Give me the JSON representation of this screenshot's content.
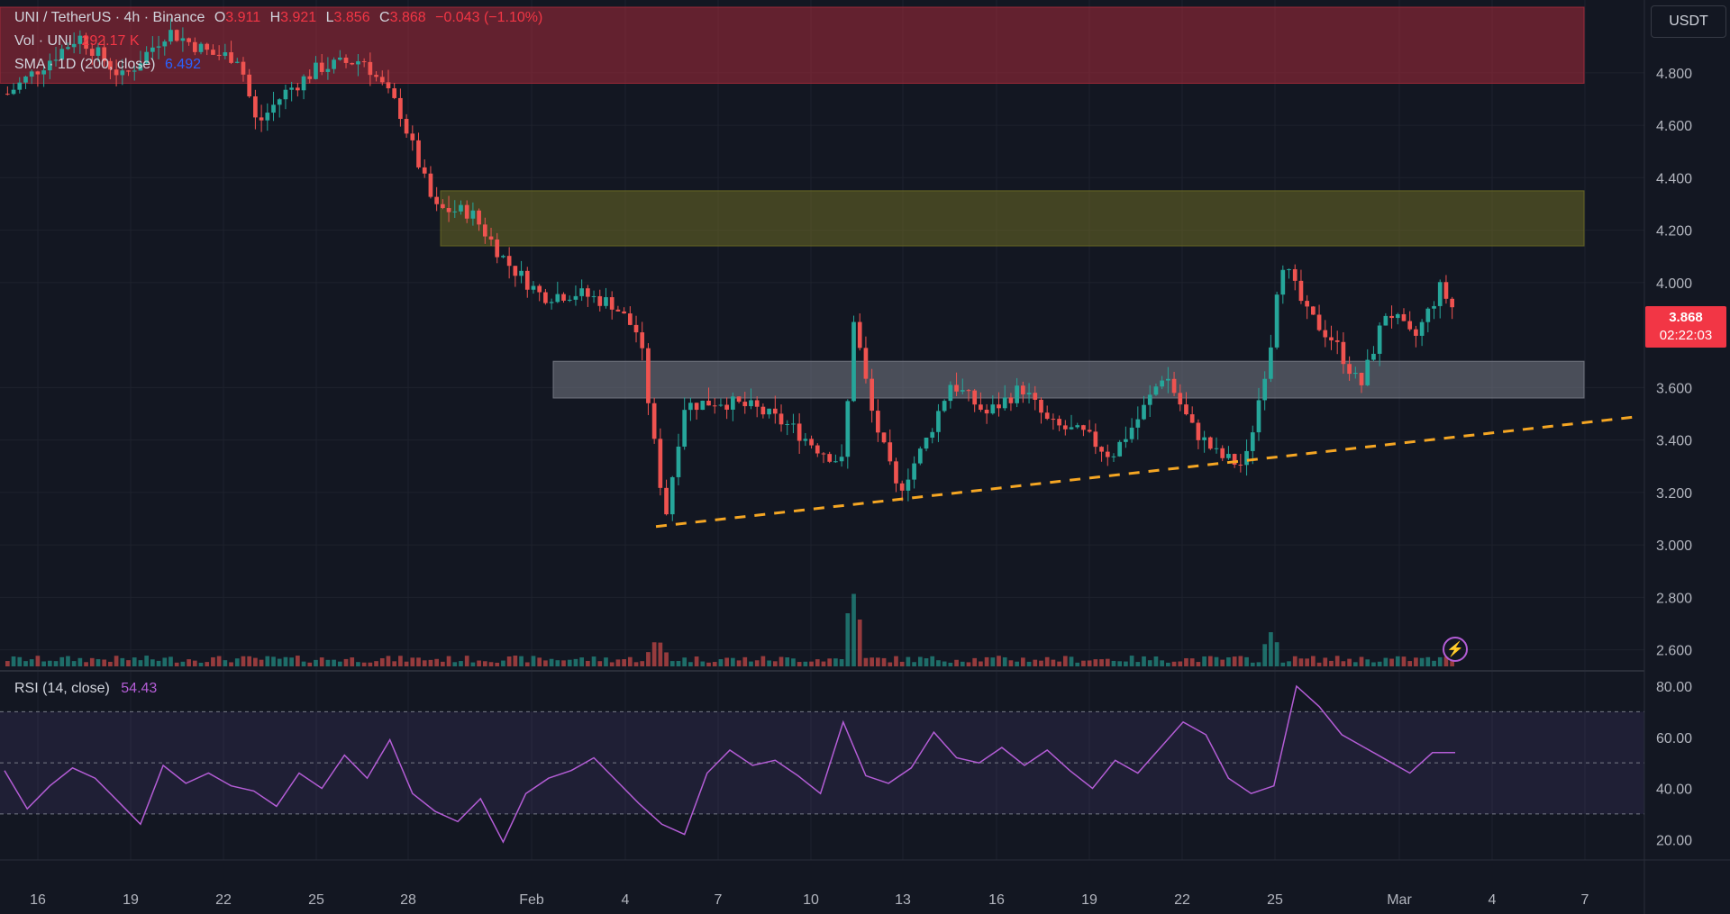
{
  "header": {
    "symbol": "UNI / TetherUS · 4h · Binance",
    "o_label": "O",
    "o": "3.911",
    "h_label": "H",
    "h": "3.921",
    "l_label": "L",
    "l": "3.856",
    "c_label": "C",
    "c": "3.868",
    "change": "−0.043 (−1.10%)",
    "vol_label": "Vol · UNI",
    "vol": "292.17 K",
    "sma_label": "SMA · 1D (200, close)",
    "sma": "6.492",
    "rsi_label": "RSI (14, close)",
    "rsi": "54.43"
  },
  "currency_button": "USDT",
  "last_price": {
    "value": "3.868",
    "countdown": "02:22:03"
  },
  "colors": {
    "up": "#26a69a",
    "down": "#ef5350",
    "rsi": "#b45dd6",
    "trendline": "#f5a623",
    "price_tag": "#f23645",
    "sma": "#2962ff"
  },
  "icons": {
    "alert": "lightning-bolt-icon"
  },
  "chart_data": {
    "type": "candlestick",
    "timeframe": "4h",
    "x_ticks": [
      "16",
      "19",
      "22",
      "25",
      "28",
      "Feb",
      "4",
      "7",
      "10",
      "13",
      "16",
      "19",
      "22",
      "25",
      "Mar",
      "4",
      "7"
    ],
    "price_ticks": [
      "4.800",
      "4.600",
      "4.400",
      "4.200",
      "4.000",
      "3.600",
      "3.400",
      "3.200",
      "3.000",
      "2.800",
      "2.600"
    ],
    "price_range": [
      2.53,
      5.05
    ],
    "zones": [
      {
        "low": 4.76,
        "high": 5.05,
        "color": "#a52a3a"
      },
      {
        "low": 4.14,
        "high": 4.35,
        "color": "#6b6a24"
      },
      {
        "low": 3.56,
        "high": 3.7,
        "color": "#787b86"
      }
    ],
    "trendline": {
      "start_price": 3.07,
      "end_price": 3.49,
      "style": "dashed"
    },
    "price_path": [
      [
        0,
        4.72
      ],
      [
        8,
        4.94
      ],
      [
        13,
        4.78
      ],
      [
        18,
        4.96
      ],
      [
        23,
        4.87
      ],
      [
        26,
        4.86
      ],
      [
        28,
        4.6
      ],
      [
        31,
        4.72
      ],
      [
        35,
        4.82
      ],
      [
        40,
        4.85
      ],
      [
        44,
        4.66
      ],
      [
        48,
        4.28
      ],
      [
        52,
        4.27
      ],
      [
        56,
        4.08
      ],
      [
        60,
        3.95
      ],
      [
        64,
        3.96
      ],
      [
        68,
        3.92
      ],
      [
        71,
        3.8
      ],
      [
        73,
        3.3
      ],
      [
        74,
        3.12
      ],
      [
        76,
        3.53
      ],
      [
        80,
        3.55
      ],
      [
        84,
        3.52
      ],
      [
        88,
        3.45
      ],
      [
        91,
        3.37
      ],
      [
        94,
        3.31
      ],
      [
        95,
        3.88
      ],
      [
        97,
        3.52
      ],
      [
        100,
        3.2
      ],
      [
        103,
        3.38
      ],
      [
        106,
        3.62
      ],
      [
        110,
        3.5
      ],
      [
        114,
        3.6
      ],
      [
        117,
        3.46
      ],
      [
        121,
        3.42
      ],
      [
        124,
        3.34
      ],
      [
        127,
        3.48
      ],
      [
        130,
        3.66
      ],
      [
        133,
        3.45
      ],
      [
        136,
        3.34
      ],
      [
        139,
        3.3
      ],
      [
        142,
        3.78
      ],
      [
        143,
        4.1
      ],
      [
        146,
        3.88
      ],
      [
        149,
        3.78
      ],
      [
        152,
        3.6
      ],
      [
        155,
        3.9
      ],
      [
        158,
        3.78
      ],
      [
        161,
        3.98
      ],
      [
        163,
        3.868
      ]
    ],
    "volume_spikes": [
      [
        73,
        3.2
      ],
      [
        95,
        8.4
      ],
      [
        142,
        3.9
      ]
    ],
    "rsi": {
      "ticks": [
        "80.00",
        "60.00",
        "40.00",
        "20.00"
      ],
      "range": [
        12,
        86
      ],
      "bands": [
        30,
        50,
        70
      ],
      "values": [
        47,
        32,
        41,
        48,
        44,
        35,
        26,
        49,
        42,
        46,
        41,
        39,
        33,
        46,
        40,
        53,
        44,
        59,
        38,
        31,
        27,
        36,
        19,
        38,
        44,
        47,
        52,
        43,
        34,
        26,
        22,
        46,
        55,
        49,
        51,
        45,
        38,
        66,
        45,
        42,
        48,
        62,
        52,
        50,
        56,
        49,
        55,
        47,
        40,
        51,
        46,
        56,
        66,
        61,
        44,
        38,
        41,
        80,
        72,
        61,
        56,
        51,
        46,
        54,
        54
      ]
    }
  }
}
